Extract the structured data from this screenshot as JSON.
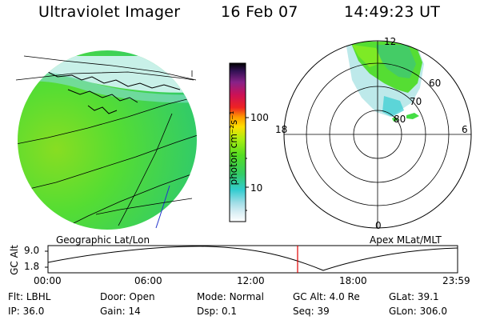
{
  "header": {
    "instrument": "Ultraviolet Imager",
    "date": "16 Feb 07",
    "time": "14:49:23 UT"
  },
  "colorbar": {
    "label": "photon cm⁻²s⁻¹",
    "ticks": [
      "100",
      "10"
    ],
    "scale": "log"
  },
  "map_labels": {
    "geographic": "Geographic Lat/Lon",
    "apex": "Apex MLat/MLT"
  },
  "polar": {
    "mlt_labels": {
      "top": "12",
      "left": "18",
      "right": "6",
      "bottom": "0"
    },
    "lat_labels": [
      "60",
      "70",
      "80"
    ]
  },
  "altitude_plot": {
    "ylabel": "GC Alt",
    "yticks": [
      "9.0",
      "1.8"
    ],
    "xticks": [
      "00:00",
      "06:00",
      "12:00",
      "18:00",
      "23:59"
    ],
    "marker_color": "#e00000"
  },
  "info": {
    "row1": [
      {
        "key": "Flt:",
        "value": "LBHL"
      },
      {
        "key": "Door:",
        "value": "Open"
      },
      {
        "key": "Mode:",
        "value": "Normal"
      },
      {
        "key": "GC Alt:",
        "value": "4.0 Re"
      },
      {
        "key": "GLat:",
        "value": "39.1"
      }
    ],
    "row2": [
      {
        "key": "IP:",
        "value": "36.0"
      },
      {
        "key": "Gain:",
        "value": "14"
      },
      {
        "key": "Dsp:",
        "value": "0.1"
      },
      {
        "key": "Seq:",
        "value": "39"
      },
      {
        "key": "GLon:",
        "value": "306.0"
      }
    ]
  },
  "colors": {
    "emission": "#44dd44",
    "emission_bright": "#88ee22",
    "emission_faint": "#ccf0f0",
    "marker": "#e00000"
  }
}
